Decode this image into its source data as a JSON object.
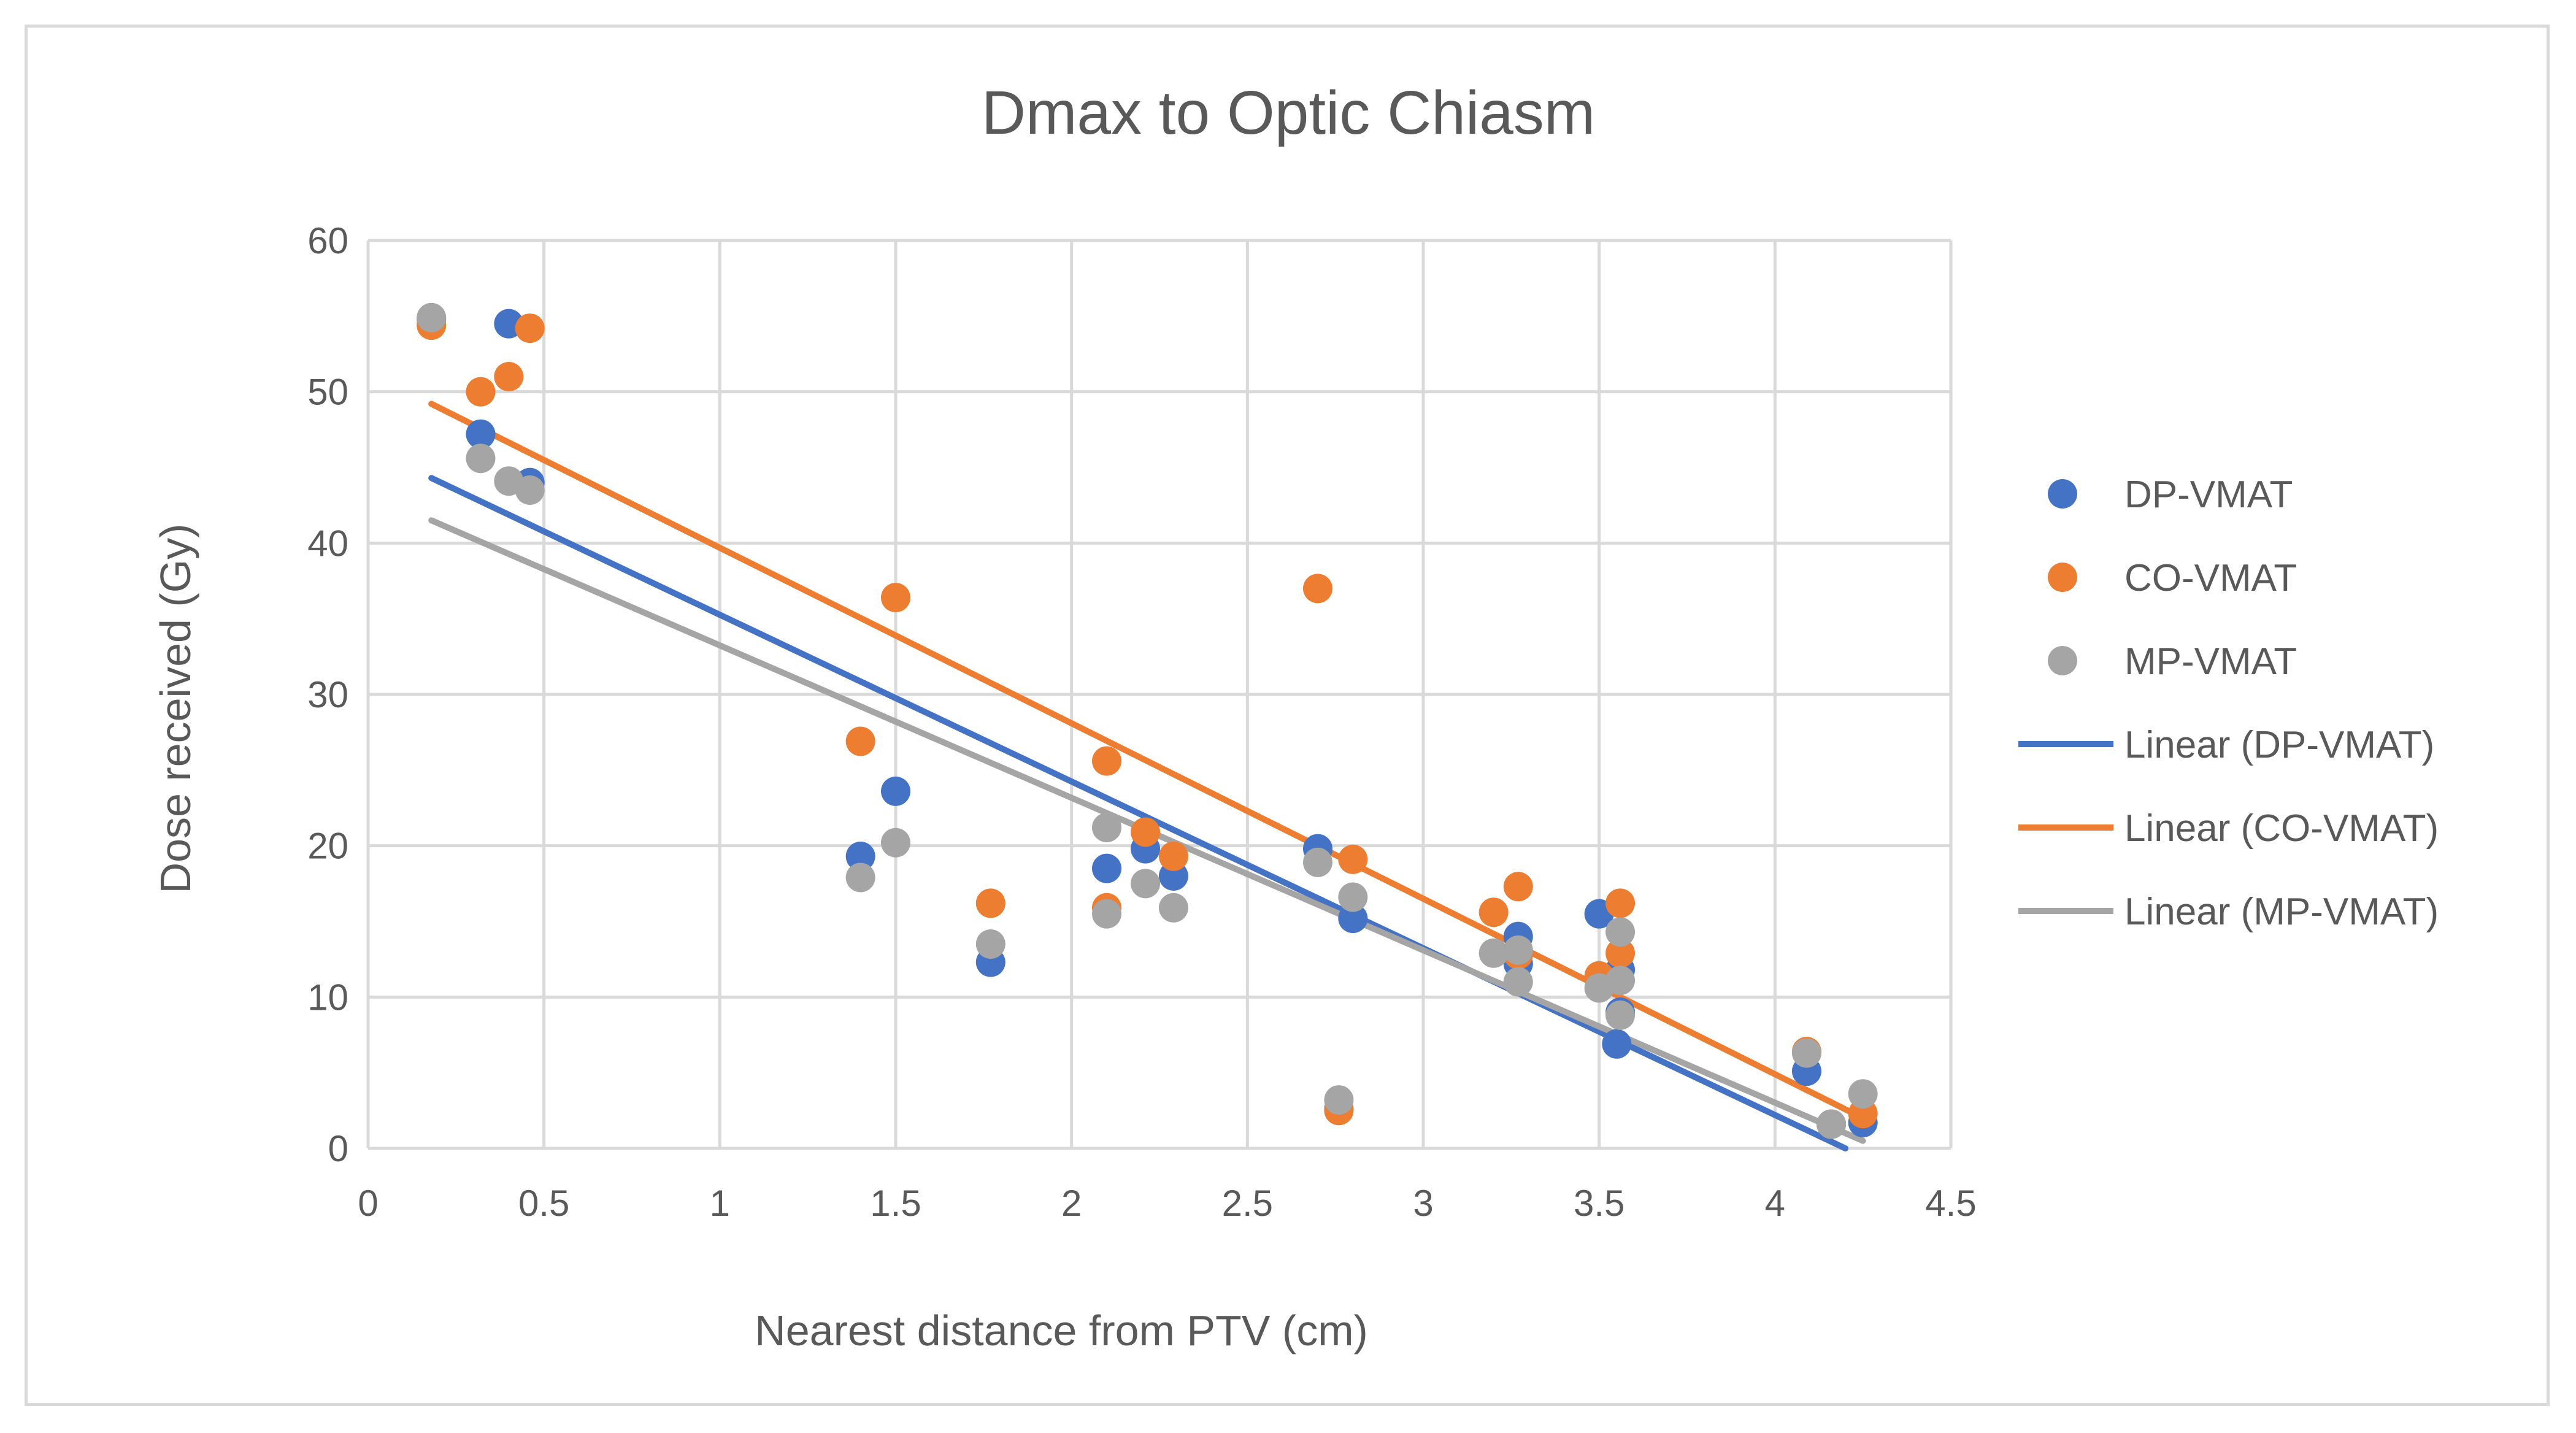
{
  "chart_data": {
    "type": "scatter",
    "title": "Dmax to Optic Chiasm",
    "xlabel": "Nearest distance from PTV (cm)",
    "ylabel": "Dose received (Gy)",
    "xlim": [
      0,
      4.5
    ],
    "ylim": [
      0,
      60
    ],
    "xticks": [
      "0",
      "0.5",
      "1",
      "1.5",
      "2",
      "2.5",
      "3",
      "3.5",
      "4",
      "4.5"
    ],
    "yticks": [
      "0",
      "10",
      "20",
      "30",
      "40",
      "50",
      "60"
    ],
    "grid": true,
    "legend_position": "right",
    "series": [
      {
        "name": "DP-VMAT",
        "color": "#4472C4",
        "points": [
          [
            0.18,
            54.8
          ],
          [
            0.32,
            47.2
          ],
          [
            0.4,
            54.5
          ],
          [
            0.46,
            44.0
          ],
          [
            1.4,
            19.3
          ],
          [
            1.5,
            23.6
          ],
          [
            1.77,
            12.3
          ],
          [
            2.1,
            18.5
          ],
          [
            2.21,
            19.8
          ],
          [
            2.29,
            18.0
          ],
          [
            2.7,
            19.8
          ],
          [
            2.8,
            15.2
          ],
          [
            2.76,
            2.6
          ],
          [
            3.27,
            14.0
          ],
          [
            3.27,
            12.2
          ],
          [
            3.5,
            15.5
          ],
          [
            3.55,
            6.9
          ],
          [
            3.56,
            9.0
          ],
          [
            3.56,
            11.8
          ],
          [
            4.09,
            5.1
          ],
          [
            4.16,
            1.6
          ],
          [
            4.25,
            1.7
          ]
        ]
      },
      {
        "name": "CO-VMAT",
        "color": "#ED7D31",
        "points": [
          [
            0.18,
            54.4
          ],
          [
            0.32,
            50.0
          ],
          [
            0.4,
            51.0
          ],
          [
            0.46,
            54.2
          ],
          [
            1.4,
            26.9
          ],
          [
            1.5,
            36.4
          ],
          [
            1.77,
            16.2
          ],
          [
            2.1,
            25.6
          ],
          [
            2.1,
            15.9
          ],
          [
            2.21,
            20.9
          ],
          [
            2.29,
            19.3
          ],
          [
            2.7,
            37.0
          ],
          [
            2.8,
            19.1
          ],
          [
            2.76,
            2.5
          ],
          [
            3.2,
            15.6
          ],
          [
            3.27,
            17.3
          ],
          [
            3.27,
            12.8
          ],
          [
            3.5,
            11.4
          ],
          [
            3.56,
            16.2
          ],
          [
            3.56,
            12.9
          ],
          [
            4.09,
            6.4
          ],
          [
            4.16,
            1.6
          ],
          [
            4.25,
            2.3
          ]
        ]
      },
      {
        "name": "MP-VMAT",
        "color": "#A5A5A5",
        "points": [
          [
            0.18,
            54.9
          ],
          [
            0.32,
            45.6
          ],
          [
            0.4,
            44.1
          ],
          [
            0.46,
            43.5
          ],
          [
            1.4,
            17.9
          ],
          [
            1.5,
            20.2
          ],
          [
            1.77,
            13.5
          ],
          [
            2.1,
            21.2
          ],
          [
            2.1,
            15.5
          ],
          [
            2.21,
            17.5
          ],
          [
            2.29,
            15.9
          ],
          [
            2.7,
            18.9
          ],
          [
            2.8,
            16.6
          ],
          [
            2.76,
            3.2
          ],
          [
            3.2,
            12.9
          ],
          [
            3.27,
            11.0
          ],
          [
            3.27,
            13.1
          ],
          [
            3.5,
            10.6
          ],
          [
            3.56,
            8.8
          ],
          [
            3.56,
            14.3
          ],
          [
            3.56,
            11.1
          ],
          [
            4.09,
            6.3
          ],
          [
            4.16,
            1.6
          ],
          [
            4.25,
            3.6
          ]
        ]
      }
    ],
    "trendlines": [
      {
        "name": "Linear (DP-VMAT)",
        "color": "#4472C4",
        "x": [
          0.18,
          4.2
        ],
        "y": [
          44.3,
          0.0
        ]
      },
      {
        "name": "Linear (CO-VMAT)",
        "color": "#ED7D31",
        "x": [
          0.18,
          4.25
        ],
        "y": [
          49.2,
          2.0
        ]
      },
      {
        "name": "Linear (MP-VMAT)",
        "color": "#A5A5A5",
        "x": [
          0.18,
          4.25
        ],
        "y": [
          41.5,
          0.5
        ]
      }
    ]
  }
}
